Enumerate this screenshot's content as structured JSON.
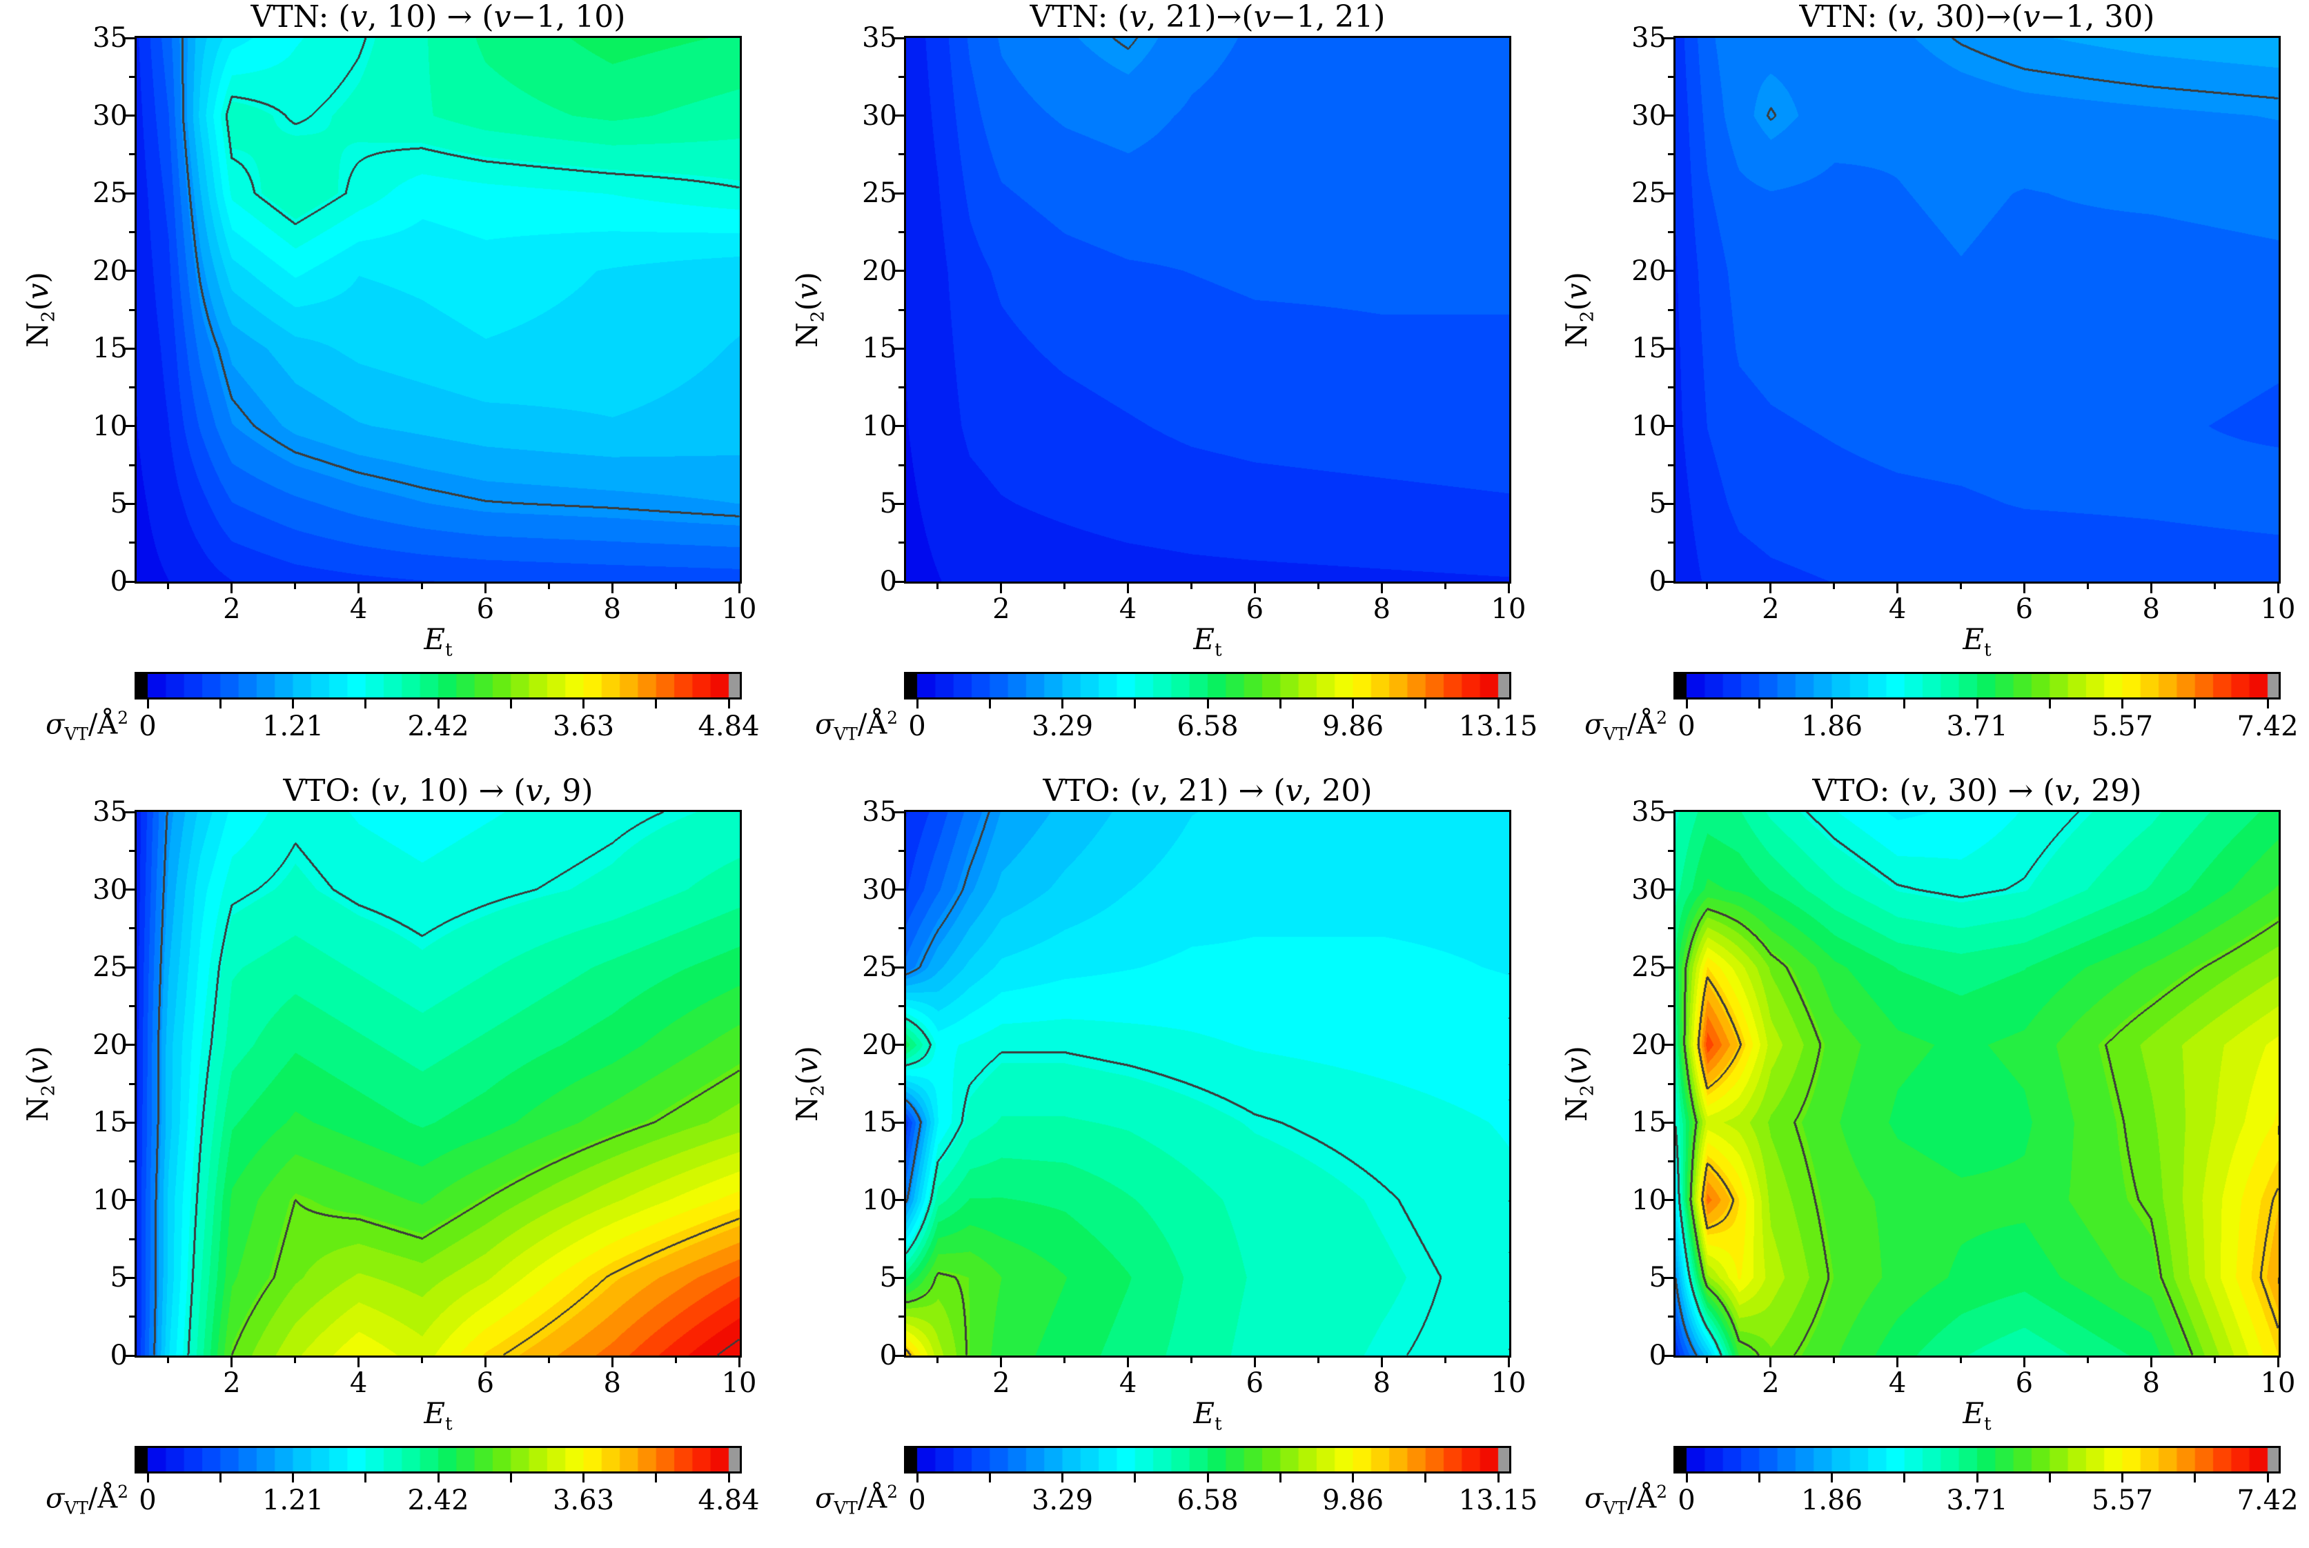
{
  "axis": {
    "ylabel": {
      "base": "N",
      "sub": "2",
      "open": "(",
      "var": "v",
      "close": ")"
    },
    "xlabel": {
      "var": "E",
      "sub": "t"
    },
    "cbar_label": {
      "sigma": "σ",
      "sub": "VT",
      "slash": "/",
      "unit": "Å",
      "sup": "2"
    },
    "yticks": [
      "35",
      "30",
      "25",
      "20",
      "15",
      "10",
      "5",
      "0"
    ],
    "xticks": [
      "2",
      "4",
      "6",
      "8",
      "10"
    ]
  },
  "style": {
    "contour_color": "#3c3c3c",
    "under_color": "#000000",
    "over_color": "#999999",
    "n_fill_levels": 32,
    "colormap": [
      [
        0.0,
        0,
        0,
        235
      ],
      [
        0.09,
        0,
        60,
        255
      ],
      [
        0.18,
        0,
        130,
        255
      ],
      [
        0.27,
        0,
        200,
        255
      ],
      [
        0.36,
        0,
        255,
        255
      ],
      [
        0.45,
        0,
        255,
        170
      ],
      [
        0.52,
        10,
        240,
        90
      ],
      [
        0.6,
        90,
        235,
        20
      ],
      [
        0.68,
        190,
        245,
        0
      ],
      [
        0.75,
        255,
        255,
        0
      ],
      [
        0.82,
        255,
        190,
        0
      ],
      [
        0.88,
        255,
        120,
        0
      ],
      [
        0.94,
        255,
        45,
        0
      ],
      [
        1.0,
        238,
        0,
        0
      ]
    ]
  },
  "panels": [
    {
      "title_runs": [
        [
          "VTN: (",
          0
        ],
        [
          "v",
          1
        ],
        [
          ", 10) → (",
          0
        ],
        [
          "v",
          1
        ],
        [
          "−1, 10)",
          0
        ]
      ],
      "colorbar": {
        "ticks": [
          "0",
          "1.21",
          "2.42",
          "3.63",
          "4.84"
        ]
      }
    },
    {
      "title_runs": [
        [
          "VTN: (",
          0
        ],
        [
          "v",
          1
        ],
        [
          ", 21)→(",
          0
        ],
        [
          "v",
          1
        ],
        [
          "−1, 21)",
          0
        ]
      ],
      "colorbar": {
        "ticks": [
          "0",
          "3.29",
          "6.58",
          "9.86",
          "13.15"
        ]
      }
    },
    {
      "title_runs": [
        [
          "VTN: (",
          0
        ],
        [
          "v",
          1
        ],
        [
          ", 30)→(",
          0
        ],
        [
          "v",
          1
        ],
        [
          "−1, 30)",
          0
        ]
      ],
      "colorbar": {
        "ticks": [
          "0",
          "1.86",
          "3.71",
          "5.57",
          "7.42"
        ]
      }
    },
    {
      "title_runs": [
        [
          "VTO: (",
          0
        ],
        [
          "v",
          1
        ],
        [
          ", 10) → (",
          0
        ],
        [
          "v",
          1
        ],
        [
          ", 9)",
          0
        ]
      ],
      "colorbar": {
        "ticks": [
          "0",
          "1.21",
          "2.42",
          "3.63",
          "4.84"
        ]
      }
    },
    {
      "title_runs": [
        [
          "VTO: (",
          0
        ],
        [
          "v",
          1
        ],
        [
          ", 21) → (",
          0
        ],
        [
          "v",
          1
        ],
        [
          ", 20)",
          0
        ]
      ],
      "colorbar": {
        "ticks": [
          "0",
          "3.29",
          "6.58",
          "9.86",
          "13.15"
        ]
      }
    },
    {
      "title_runs": [
        [
          "VTO: (",
          0
        ],
        [
          "v",
          1
        ],
        [
          ", 30) → (",
          0
        ],
        [
          "v",
          1
        ],
        [
          ", 29)",
          0
        ]
      ],
      "colorbar": {
        "ticks": [
          "0",
          "1.86",
          "3.71",
          "5.57",
          "7.42"
        ]
      }
    }
  ],
  "chart_data": [
    {
      "type": "heatmap",
      "title": "VTN: (v, 10) → (v−1, 10)",
      "xlabel": "Et",
      "ylabel": "N2(v)",
      "x": [
        0.5,
        1,
        1.5,
        2,
        3,
        4,
        5,
        6,
        8,
        10
      ],
      "y": [
        0,
        5,
        10,
        15,
        20,
        25,
        30,
        35
      ],
      "zmax": 4.84,
      "contour_levels": [
        0.97,
        1.94,
        2.9,
        3.87,
        4.84
      ],
      "colorbar_ticks": [
        0,
        1.21,
        2.42,
        3.63,
        4.84
      ],
      "values": [
        [
          0.1,
          0.15,
          0.22,
          0.3,
          0.38,
          0.42,
          0.45,
          0.47,
          0.5,
          0.52
        ],
        [
          0.12,
          0.22,
          0.4,
          0.6,
          0.72,
          0.82,
          0.9,
          0.96,
          1.0,
          1.06
        ],
        [
          0.15,
          0.3,
          0.62,
          0.9,
          1.1,
          1.2,
          1.25,
          1.3,
          1.35,
          1.3
        ],
        [
          0.16,
          0.35,
          0.8,
          1.1,
          1.3,
          1.4,
          1.45,
          1.5,
          1.45,
          1.35
        ],
        [
          0.18,
          0.42,
          1.0,
          1.45,
          1.7,
          1.52,
          1.55,
          1.6,
          1.5,
          1.42
        ],
        [
          0.2,
          0.5,
          1.2,
          1.85,
          2.1,
          1.9,
          1.72,
          1.76,
          1.82,
          1.92
        ],
        [
          0.24,
          0.6,
          1.4,
          2.05,
          1.92,
          2.0,
          2.1,
          2.2,
          2.3,
          2.2
        ],
        [
          0.28,
          0.7,
          1.3,
          1.6,
          1.8,
          1.92,
          2.1,
          2.3,
          2.48,
          2.4
        ]
      ]
    },
    {
      "type": "heatmap",
      "title": "VTN: (v, 21)→(v−1, 21)",
      "xlabel": "Et",
      "ylabel": "N2(v)",
      "x": [
        0.5,
        1,
        1.5,
        2,
        3,
        4,
        5,
        6,
        8,
        10
      ],
      "y": [
        0,
        5,
        10,
        15,
        20,
        25,
        30,
        35
      ],
      "zmax": 13.15,
      "contour_levels": [
        2.63,
        5.26,
        7.89,
        10.52
      ],
      "colorbar_ticks": [
        0,
        3.29,
        6.58,
        9.86,
        13.15
      ],
      "values": [
        [
          0.3,
          0.4,
          0.5,
          0.55,
          0.6,
          0.65,
          0.7,
          0.72,
          0.76,
          0.8
        ],
        [
          0.35,
          0.5,
          0.7,
          0.8,
          0.9,
          1.0,
          1.05,
          1.1,
          1.15,
          1.2
        ],
        [
          0.4,
          0.6,
          0.9,
          1.0,
          1.1,
          1.2,
          1.3,
          1.35,
          1.4,
          1.45
        ],
        [
          0.42,
          0.65,
          1.0,
          1.15,
          1.3,
          1.4,
          1.5,
          1.55,
          1.6,
          1.6
        ],
        [
          0.45,
          0.7,
          1.1,
          1.3,
          1.5,
          1.6,
          1.65,
          1.7,
          1.7,
          1.7
        ],
        [
          0.5,
          0.8,
          1.3,
          1.6,
          1.8,
          1.9,
          1.85,
          1.8,
          1.76,
          1.75
        ],
        [
          0.52,
          0.9,
          1.5,
          1.9,
          2.1,
          2.2,
          2.0,
          1.9,
          1.85,
          1.8
        ],
        [
          0.55,
          1.0,
          1.7,
          2.1,
          2.4,
          2.7,
          2.2,
          2.0,
          1.9,
          1.85
        ]
      ]
    },
    {
      "type": "heatmap",
      "title": "VTN: (v, 30)→(v−1, 30)",
      "xlabel": "Et",
      "ylabel": "N2(v)",
      "x": [
        0.5,
        1,
        1.5,
        2,
        3,
        4,
        5,
        6,
        8,
        10
      ],
      "y": [
        0,
        5,
        10,
        15,
        20,
        25,
        30,
        35
      ],
      "zmax": 7.42,
      "contour_levels": [
        1.48,
        2.97,
        4.45,
        5.94
      ],
      "colorbar_ticks": [
        0,
        1.86,
        3.71,
        5.57,
        7.42
      ],
      "values": [
        [
          0.3,
          0.5,
          0.6,
          0.65,
          0.7,
          0.72,
          0.75,
          0.76,
          0.8,
          0.82
        ],
        [
          0.35,
          0.6,
          0.75,
          0.8,
          0.85,
          0.88,
          0.9,
          0.94,
          0.96,
          1.0
        ],
        [
          0.4,
          0.7,
          0.85,
          0.9,
          0.95,
          1.0,
          1.02,
          1.05,
          0.95,
          0.9
        ],
        [
          0.42,
          0.75,
          0.95,
          1.0,
          1.05,
          1.08,
          1.1,
          1.05,
          1.0,
          0.95
        ],
        [
          0.45,
          0.8,
          1.0,
          1.05,
          1.08,
          1.1,
          1.15,
          1.1,
          1.05,
          1.1
        ],
        [
          0.48,
          0.9,
          1.1,
          1.15,
          1.1,
          1.15,
          1.2,
          1.15,
          1.2,
          1.25
        ],
        [
          0.5,
          1.0,
          1.3,
          1.5,
          1.25,
          1.2,
          1.25,
          1.3,
          1.35,
          1.4
        ],
        [
          0.55,
          1.1,
          1.35,
          1.3,
          1.3,
          1.35,
          1.5,
          1.6,
          1.7,
          1.76
        ]
      ]
    },
    {
      "type": "heatmap",
      "title": "VTO: (v, 10) → (v, 9)",
      "xlabel": "Et",
      "ylabel": "N2(v)",
      "x": [
        0.5,
        1,
        1.5,
        2,
        3,
        4,
        5,
        6,
        8,
        10
      ],
      "y": [
        0,
        5,
        10,
        15,
        20,
        25,
        30,
        35
      ],
      "zmax": 4.84,
      "contour_levels": [
        0.97,
        1.94,
        2.9,
        3.87,
        4.84
      ],
      "colorbar_ticks": [
        0,
        1.21,
        2.42,
        3.63,
        4.84
      ],
      "values": [
        [
          0.3,
          1.5,
          2.2,
          2.9,
          3.3,
          3.6,
          3.4,
          3.8,
          4.3,
          4.95
        ],
        [
          0.3,
          1.4,
          2.1,
          2.7,
          3.0,
          3.2,
          3.1,
          3.3,
          3.9,
          4.4
        ],
        [
          0.3,
          1.4,
          2.0,
          2.6,
          2.9,
          2.8,
          2.7,
          2.9,
          3.3,
          3.7
        ],
        [
          0.28,
          1.3,
          1.9,
          2.4,
          2.6,
          2.5,
          2.4,
          2.5,
          2.8,
          3.1
        ],
        [
          0.26,
          1.3,
          1.8,
          2.2,
          2.4,
          2.3,
          2.2,
          2.3,
          2.5,
          2.8
        ],
        [
          0.25,
          1.2,
          1.7,
          2.1,
          2.2,
          2.1,
          2.0,
          2.1,
          2.3,
          2.5
        ],
        [
          0.22,
          1.1,
          1.6,
          1.9,
          2.0,
          1.9,
          1.85,
          1.9,
          2.0,
          2.2
        ],
        [
          0.2,
          1.0,
          1.4,
          1.7,
          1.9,
          1.8,
          1.75,
          1.8,
          1.9,
          2.0
        ]
      ]
    },
    {
      "type": "heatmap",
      "title": "VTO: (v, 21) → (v, 20)",
      "xlabel": "Et",
      "ylabel": "N2(v)",
      "x": [
        0.5,
        1,
        1.5,
        2,
        3,
        4,
        5,
        6,
        8,
        10
      ],
      "y": [
        0,
        5,
        10,
        15,
        20,
        25,
        30,
        35
      ],
      "zmax": 13.15,
      "contour_levels": [
        2.63,
        5.26,
        7.89,
        10.52
      ],
      "colorbar_ticks": [
        0,
        3.29,
        6.58,
        9.86,
        13.15
      ],
      "values": [
        [
          10.8,
          8.8,
          7.8,
          7.2,
          6.8,
          6.4,
          6.0,
          5.6,
          5.3,
          5.1
        ],
        [
          6.5,
          8.0,
          7.8,
          7.4,
          7.0,
          6.6,
          6.1,
          5.7,
          5.4,
          5.1
        ],
        [
          2.5,
          6.0,
          6.6,
          6.6,
          6.5,
          6.2,
          5.9,
          5.6,
          5.3,
          5.0
        ],
        [
          1.0,
          4.5,
          5.5,
          5.8,
          5.8,
          5.7,
          5.5,
          5.3,
          5.1,
          4.9
        ],
        [
          6.8,
          4.8,
          5.0,
          5.2,
          5.2,
          5.1,
          5.0,
          4.9,
          4.8,
          4.7
        ],
        [
          2.2,
          3.2,
          3.8,
          4.2,
          4.4,
          4.5,
          4.6,
          4.6,
          4.6,
          4.5
        ],
        [
          1.2,
          2.0,
          2.8,
          3.4,
          3.8,
          4.1,
          4.3,
          4.4,
          4.4,
          4.4
        ],
        [
          0.8,
          1.4,
          2.2,
          2.9,
          3.4,
          3.8,
          4.1,
          4.2,
          4.3,
          4.3
        ]
      ]
    },
    {
      "type": "heatmap",
      "title": "VTO: (v, 30) → (v, 29)",
      "xlabel": "Et",
      "ylabel": "N2(v)",
      "x": [
        0.5,
        1,
        1.5,
        2,
        3,
        4,
        5,
        6,
        8,
        10
      ],
      "y": [
        0,
        5,
        10,
        15,
        20,
        25,
        30,
        35
      ],
      "zmax": 7.42,
      "contour_levels": [
        1.48,
        2.97,
        4.45,
        5.94
      ],
      "colorbar_ticks": [
        0,
        1.86,
        3.71,
        5.57,
        7.42
      ],
      "values": [
        [
          0.5,
          2.0,
          4.2,
          4.6,
          4.2,
          3.8,
          3.5,
          3.3,
          3.8,
          5.8
        ],
        [
          1.5,
          4.8,
          5.6,
          5.0,
          4.4,
          4.1,
          3.9,
          3.8,
          4.3,
          6.2
        ],
        [
          2.5,
          6.6,
          5.8,
          4.8,
          4.3,
          4.1,
          4.0,
          4.0,
          4.5,
          6.0
        ],
        [
          3.0,
          5.2,
          5.0,
          4.6,
          4.2,
          3.9,
          3.8,
          3.9,
          4.6,
          5.6
        ],
        [
          3.5,
          6.9,
          6.0,
          5.0,
          4.3,
          4.0,
          3.9,
          4.0,
          4.7,
          5.4
        ],
        [
          3.8,
          5.8,
          5.2,
          4.6,
          4.0,
          3.7,
          3.6,
          3.7,
          4.2,
          4.8
        ],
        [
          3.4,
          4.0,
          3.9,
          3.7,
          3.3,
          3.0,
          2.9,
          3.0,
          3.5,
          4.2
        ],
        [
          3.2,
          3.6,
          3.5,
          3.2,
          2.8,
          2.5,
          2.6,
          2.8,
          3.2,
          3.8
        ]
      ]
    }
  ]
}
